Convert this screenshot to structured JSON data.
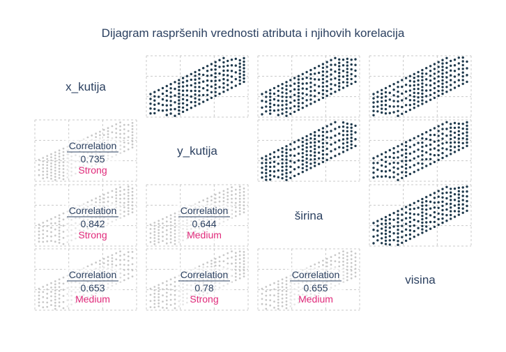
{
  "title": "Dijagram raspršenih vrednosti atributa i njihovih korelacija",
  "colors": {
    "point": "#1f3a4d",
    "faded_point": "#c8c8c8",
    "grid": "#c8c8c8",
    "text": "#2a3f5f",
    "strength": "#e0297a"
  },
  "chart_data": {
    "type": "scatter",
    "variables": [
      "x_kutija",
      "y_kutija",
      "širina",
      "visina"
    ],
    "correlation_label": "Correlation",
    "correlations": [
      {
        "row": 1,
        "col": 0,
        "value": "0.735",
        "strength": "Strong"
      },
      {
        "row": 2,
        "col": 0,
        "value": "0.842",
        "strength": "Strong"
      },
      {
        "row": 2,
        "col": 1,
        "value": "0.644",
        "strength": "Medium"
      },
      {
        "row": 3,
        "col": 0,
        "value": "0.653",
        "strength": "Medium"
      },
      {
        "row": 3,
        "col": 1,
        "value": "0.78",
        "strength": "Strong"
      },
      {
        "row": 3,
        "col": 2,
        "value": "0.655",
        "strength": "Medium"
      }
    ],
    "grid": true
  }
}
